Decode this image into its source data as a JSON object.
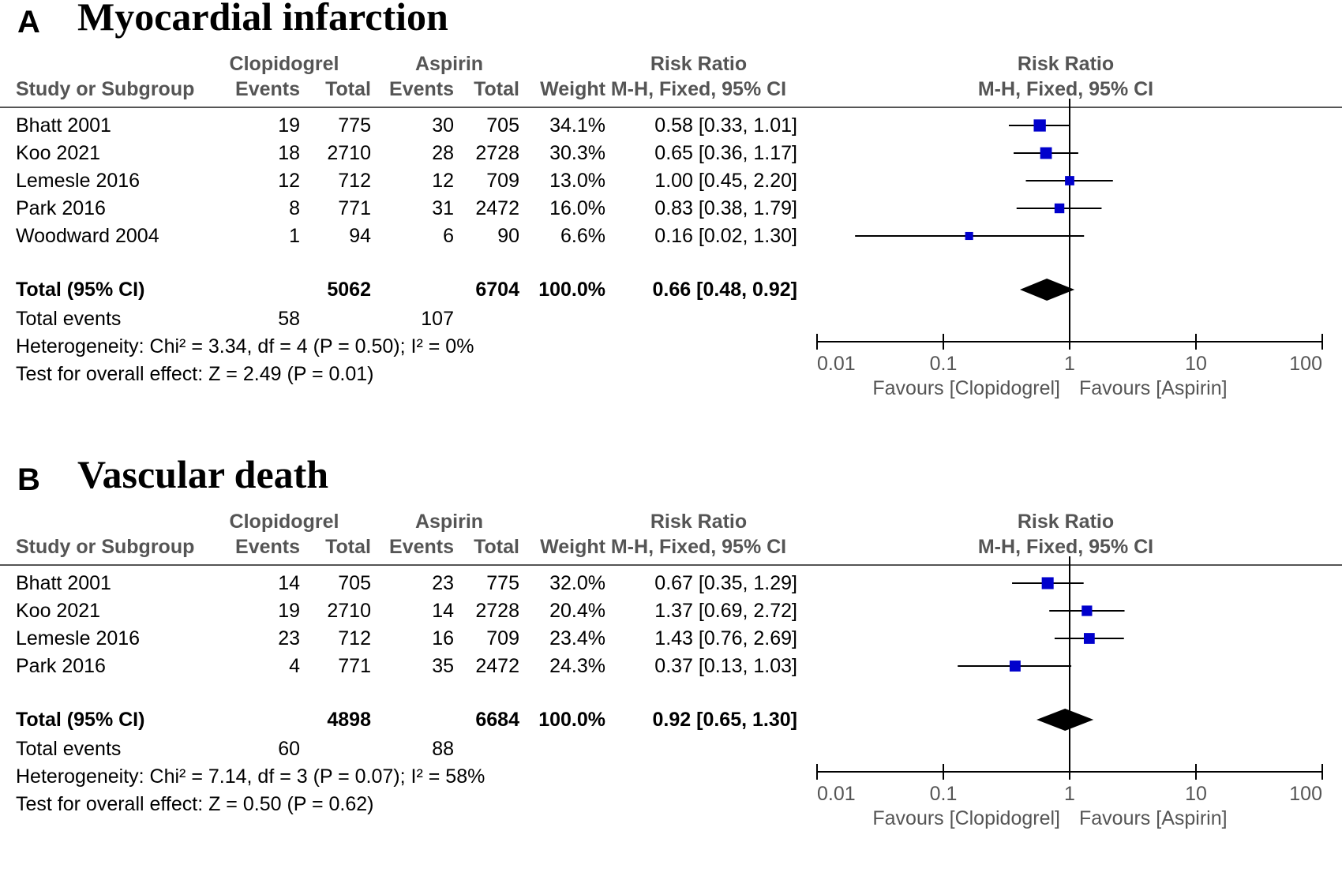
{
  "colors": {
    "square": "#0000cc",
    "diamond": "#000000",
    "line": "#000000",
    "header": "#555555"
  },
  "headers": {
    "group1": "Clopidogrel",
    "group2": "Aspirin",
    "rr_title": "Risk Ratio",
    "rr_method": "M-H, Fixed, 95% CI",
    "study": "Study or Subgroup",
    "events": "Events",
    "total": "Total",
    "weight": "Weight"
  },
  "axis": {
    "ticks": [
      0.01,
      0.1,
      1,
      10,
      100
    ],
    "tick_labels": [
      "0.01",
      "0.1",
      "1",
      "10",
      "100"
    ],
    "scale": "log10",
    "favours_left": "Favours [Clopidogrel]",
    "favours_right": "Favours [Aspirin]"
  },
  "panels": [
    {
      "letter": "A",
      "title": "Myocardial infarction",
      "total_label": "Total (95% CI)",
      "total_events_label": "Total events",
      "studies": [
        {
          "name": "Bhatt 2001",
          "c_events": "19",
          "c_total": "775",
          "a_events": "30",
          "a_total": "705",
          "weight": "34.1%",
          "rr_text": "0.58 [0.33, 1.01]"
        },
        {
          "name": "Koo 2021",
          "c_events": "18",
          "c_total": "2710",
          "a_events": "28",
          "a_total": "2728",
          "weight": "30.3%",
          "rr_text": "0.65 [0.36, 1.17]"
        },
        {
          "name": "Lemesle 2016",
          "c_events": "12",
          "c_total": "712",
          "a_events": "12",
          "a_total": "709",
          "weight": "13.0%",
          "rr_text": "1.00 [0.45, 2.20]"
        },
        {
          "name": "Park 2016",
          "c_events": "8",
          "c_total": "771",
          "a_events": "31",
          "a_total": "2472",
          "weight": "16.0%",
          "rr_text": "0.83 [0.38, 1.79]"
        },
        {
          "name": "Woodward 2004",
          "c_events": "1",
          "c_total": "94",
          "a_events": "6",
          "a_total": "90",
          "weight": "6.6%",
          "rr_text": "0.16 [0.02, 1.30]"
        }
      ],
      "total": {
        "c_total": "5062",
        "a_total": "6704",
        "weight": "100.0%",
        "rr_text": "0.66 [0.48, 0.92]"
      },
      "total_events": {
        "c": "58",
        "a": "107"
      },
      "heterogeneity": "Heterogeneity: Chi² = 3.34, df = 4 (P = 0.50); I² = 0%",
      "overall_effect": "Test for overall effect: Z = 2.49 (P = 0.01)"
    },
    {
      "letter": "B",
      "title": "Vascular death",
      "total_label": "Total (95% CI)",
      "total_events_label": "Total events",
      "studies": [
        {
          "name": "Bhatt 2001",
          "c_events": "14",
          "c_total": "705",
          "a_events": "23",
          "a_total": "775",
          "weight": "32.0%",
          "rr_text": "0.67 [0.35, 1.29]"
        },
        {
          "name": "Koo 2021",
          "c_events": "19",
          "c_total": "2710",
          "a_events": "14",
          "a_total": "2728",
          "weight": "20.4%",
          "rr_text": "1.37 [0.69, 2.72]"
        },
        {
          "name": "Lemesle 2016",
          "c_events": "23",
          "c_total": "712",
          "a_events": "16",
          "a_total": "709",
          "weight": "23.4%",
          "rr_text": "1.43 [0.76, 2.69]"
        },
        {
          "name": "Park 2016",
          "c_events": "4",
          "c_total": "771",
          "a_events": "35",
          "a_total": "2472",
          "weight": "24.3%",
          "rr_text": "0.37 [0.13, 1.03]"
        }
      ],
      "total": {
        "c_total": "4898",
        "a_total": "6684",
        "weight": "100.0%",
        "rr_text": "0.92 [0.65, 1.30]"
      },
      "total_events": {
        "c": "60",
        "a": "88"
      },
      "heterogeneity": "Heterogeneity: Chi² = 7.14, df = 3 (P = 0.07); I² = 58%",
      "overall_effect": "Test for overall effect: Z = 0.50 (P = 0.62)"
    }
  ],
  "chart_data": [
    {
      "type": "forest",
      "title": "Myocardial infarction",
      "xlabel": "Risk Ratio (M-H, Fixed, 95% CI), log scale",
      "xlim": [
        0.01,
        100
      ],
      "studies": [
        {
          "name": "Bhatt 2001",
          "rr": 0.58,
          "lo": 0.33,
          "hi": 1.01,
          "weight": 34.1
        },
        {
          "name": "Koo 2021",
          "rr": 0.65,
          "lo": 0.36,
          "hi": 1.17,
          "weight": 30.3
        },
        {
          "name": "Lemesle 2016",
          "rr": 1.0,
          "lo": 0.45,
          "hi": 2.2,
          "weight": 13.0
        },
        {
          "name": "Park 2016",
          "rr": 0.83,
          "lo": 0.38,
          "hi": 1.79,
          "weight": 16.0
        },
        {
          "name": "Woodward 2004",
          "rr": 0.16,
          "lo": 0.02,
          "hi": 1.3,
          "weight": 6.6
        }
      ],
      "pooled": {
        "rr": 0.66,
        "lo": 0.48,
        "hi": 0.92
      }
    },
    {
      "type": "forest",
      "title": "Vascular death",
      "xlabel": "Risk Ratio (M-H, Fixed, 95% CI), log scale",
      "xlim": [
        0.01,
        100
      ],
      "studies": [
        {
          "name": "Bhatt 2001",
          "rr": 0.67,
          "lo": 0.35,
          "hi": 1.29,
          "weight": 32.0
        },
        {
          "name": "Koo 2021",
          "rr": 1.37,
          "lo": 0.69,
          "hi": 2.72,
          "weight": 20.4
        },
        {
          "name": "Lemesle 2016",
          "rr": 1.43,
          "lo": 0.76,
          "hi": 2.69,
          "weight": 23.4
        },
        {
          "name": "Park 2016",
          "rr": 0.37,
          "lo": 0.13,
          "hi": 1.03,
          "weight": 24.3
        }
      ],
      "pooled": {
        "rr": 0.92,
        "lo": 0.65,
        "hi": 1.3
      }
    }
  ]
}
